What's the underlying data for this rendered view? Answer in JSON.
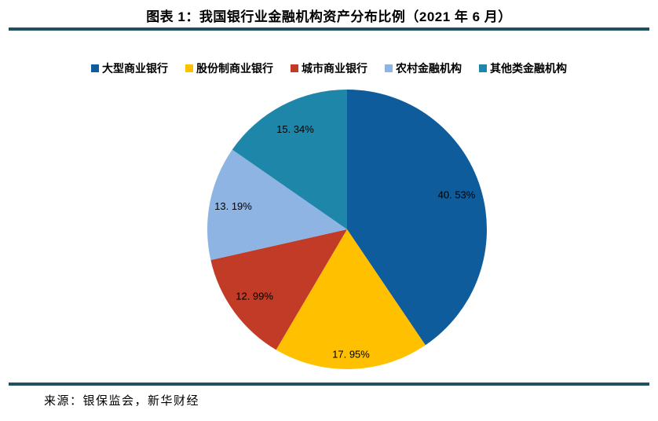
{
  "figure": {
    "title": "图表 1：我国银行业金融机构资产分布比例（2021 年 6 月）",
    "source": "来源：银保监会，新华财经"
  },
  "style": {
    "background": "#FFFFFF",
    "text_color": "#000000",
    "divider_color": "#1F5060"
  },
  "chart_data": {
    "type": "pie",
    "title": "图表 1：我国银行业金融机构资产分布比例（2021 年 6 月）",
    "categories": [
      "大型商业银行",
      "股份制商业银行",
      "城市商业银行",
      "农村金融机构",
      "其他类金融机构"
    ],
    "values": [
      40.53,
      17.95,
      12.99,
      13.19,
      15.34
    ],
    "data_labels": [
      "40. 53%",
      "17. 95%",
      "12. 99%",
      "13. 19%",
      "15. 34%"
    ],
    "colors": [
      "#0E5C9C",
      "#FFC000",
      "#C23B26",
      "#8EB4E3",
      "#1D86A9"
    ],
    "start_angle_deg": 0,
    "direction": "clockwise",
    "legend_position": "top",
    "label_position": "inside",
    "source_note": "来源：银保监会，新华财经"
  }
}
